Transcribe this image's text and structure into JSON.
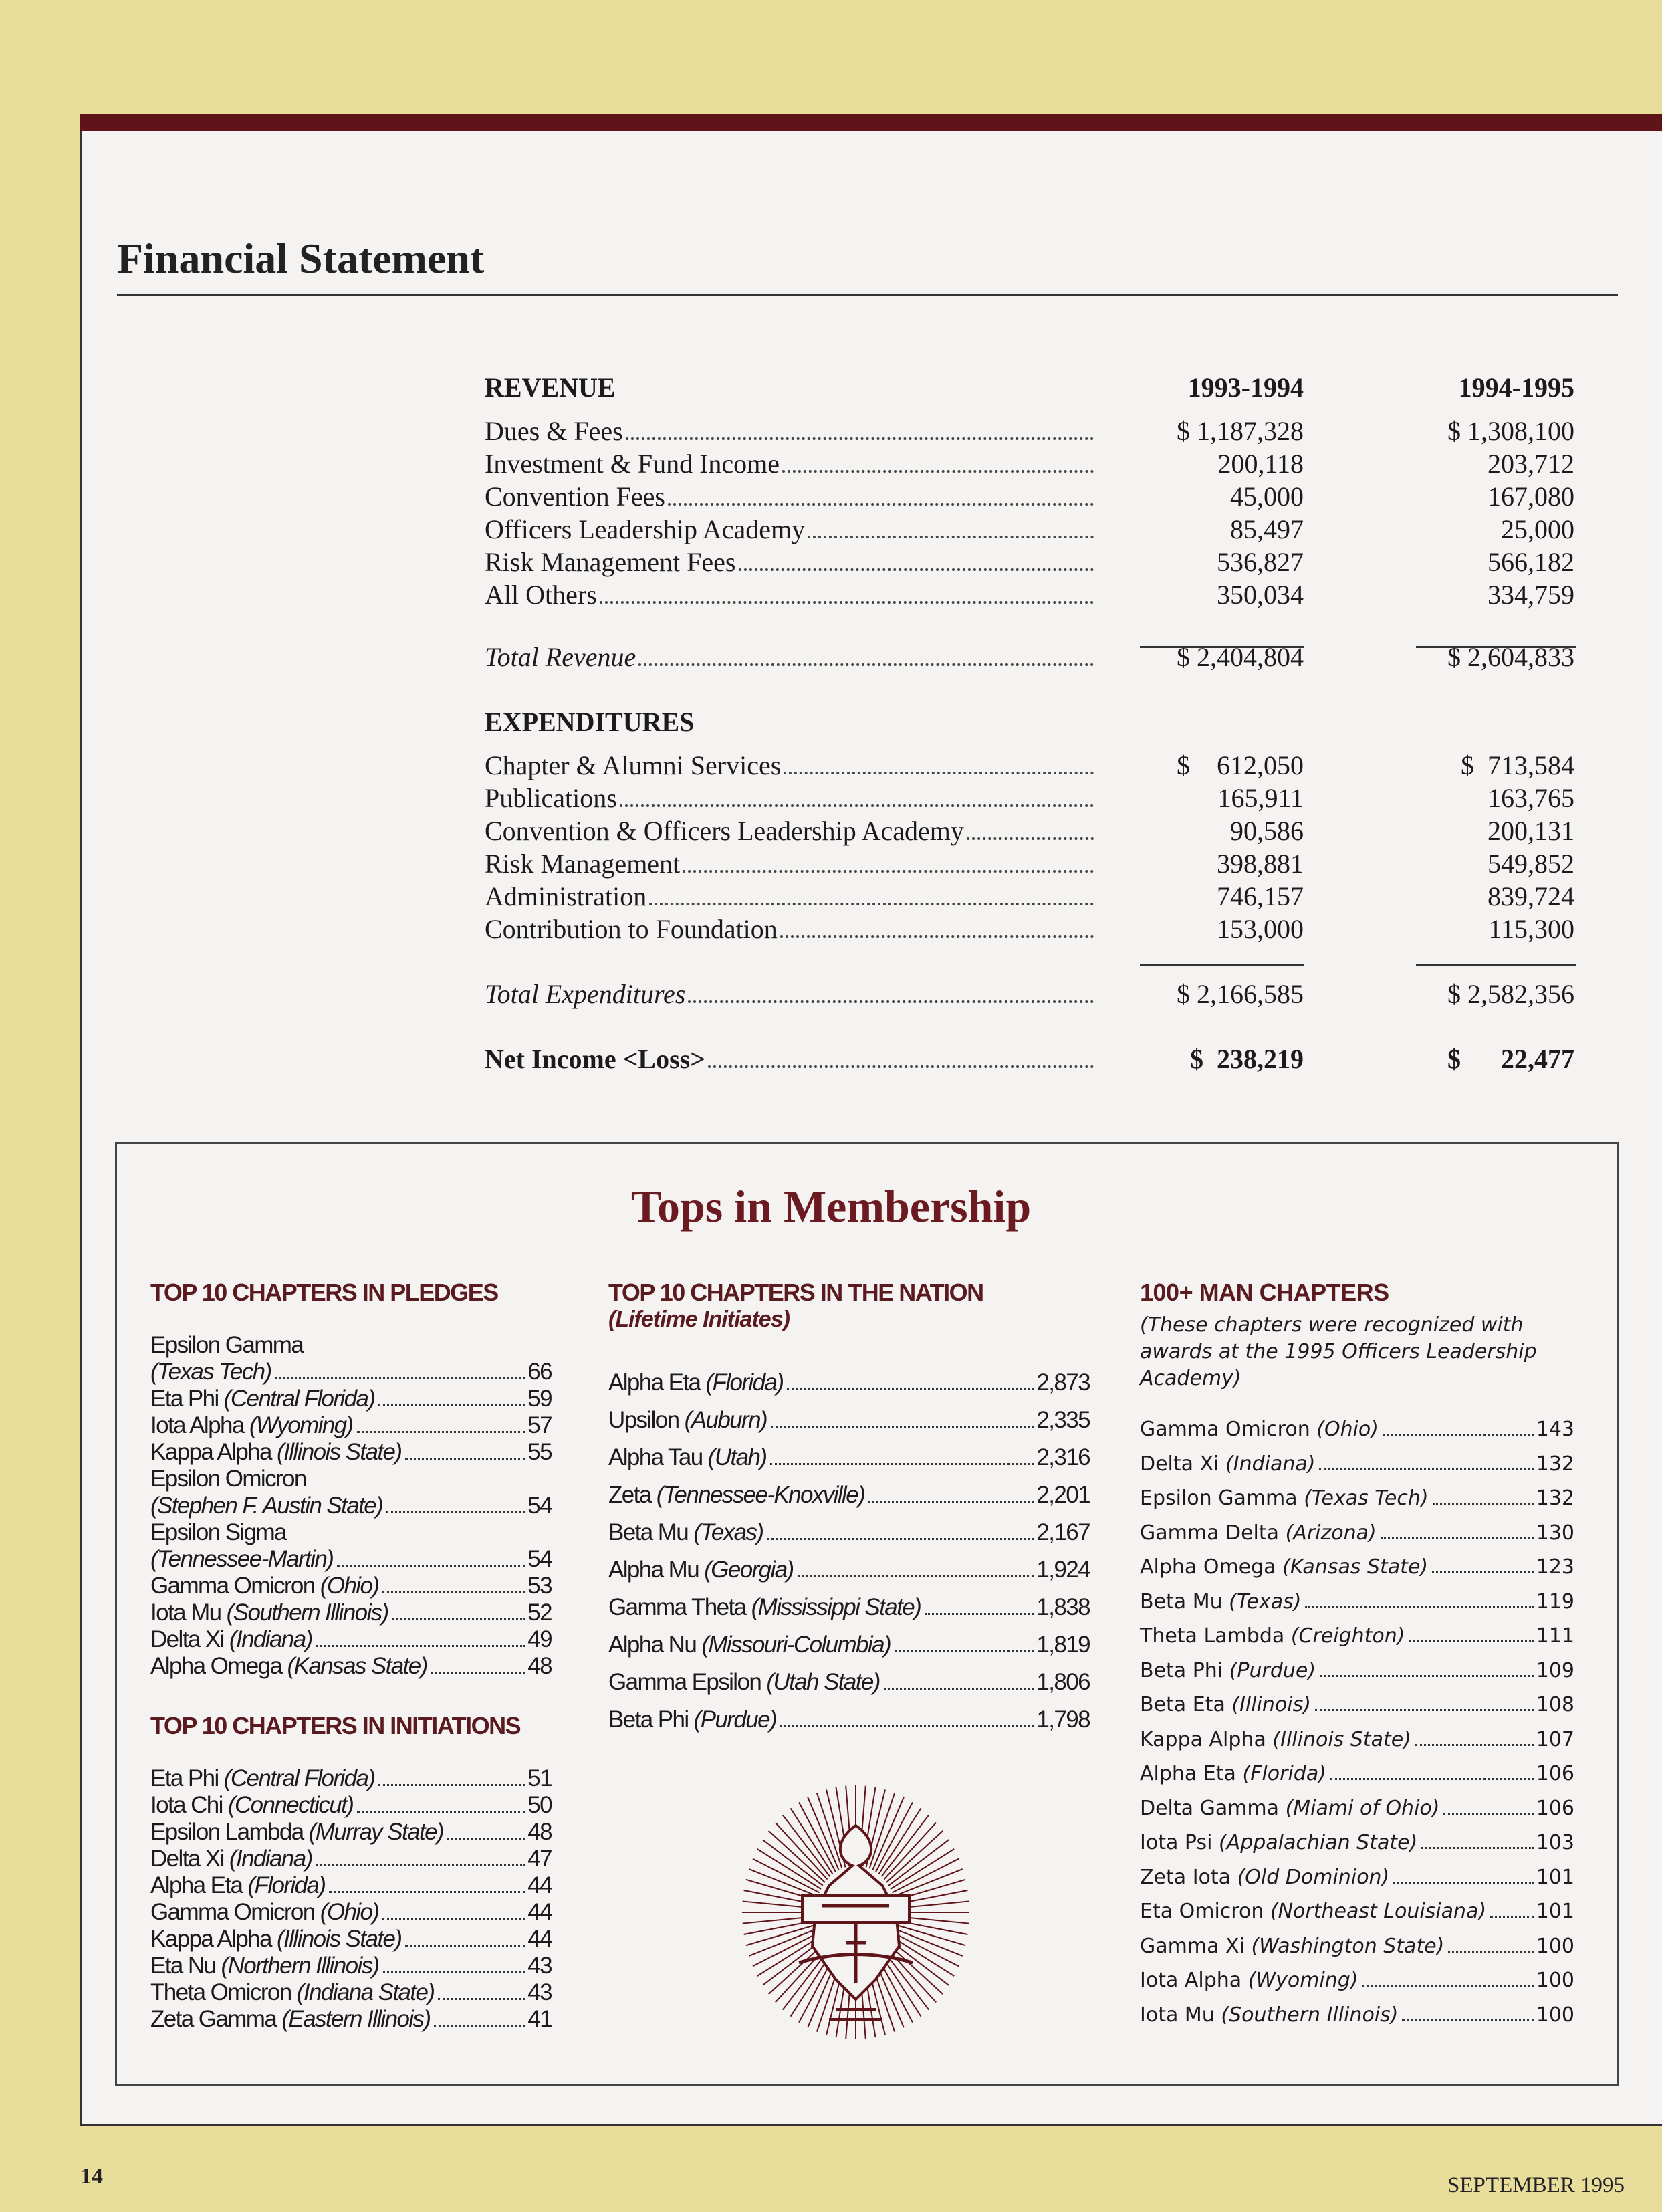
{
  "financial": {
    "title": "Financial Statement",
    "revenue_header": "REVENUE",
    "years": [
      "1993-1994",
      "1994-1995"
    ],
    "revenue": [
      {
        "label": "Dues & Fees",
        "y1": "$ 1,187,328",
        "y2": "$ 1,308,100"
      },
      {
        "label": "Investment & Fund Income",
        "y1": "200,118",
        "y2": "203,712"
      },
      {
        "label": "Convention Fees",
        "y1": "45,000",
        "y2": "167,080"
      },
      {
        "label": "Officers Leadership Academy",
        "y1": "85,497",
        "y2": "25,000"
      },
      {
        "label": "Risk Management Fees",
        "y1": "536,827",
        "y2": "566,182"
      },
      {
        "label": "All Others",
        "y1": "350,034",
        "y2": "334,759"
      }
    ],
    "total_revenue": {
      "label": "Total Revenue",
      "y1": "$ 2,404,804",
      "y2": "$ 2,604,833"
    },
    "expenditures_header": "EXPENDITURES",
    "expenditures": [
      {
        "label": "Chapter & Alumni Services",
        "y1": "$    612,050",
        "y2": "$  713,584"
      },
      {
        "label": "Publications",
        "y1": "165,911",
        "y2": "163,765"
      },
      {
        "label": "Convention & Officers Leadership Academy",
        "y1": "90,586",
        "y2": "200,131"
      },
      {
        "label": "Risk Management",
        "y1": "398,881",
        "y2": "549,852"
      },
      {
        "label": "Administration",
        "y1": "746,157",
        "y2": "839,724"
      },
      {
        "label": "Contribution to Foundation",
        "y1": "153,000",
        "y2": "115,300"
      }
    ],
    "total_expenditures": {
      "label": "Total Expenditures",
      "y1": "$ 2,166,585",
      "y2": "$ 2,582,356"
    },
    "net_income": {
      "label": "Net Income <Loss>",
      "y1": "$  238,219",
      "y2": "$      22,477"
    }
  },
  "membership": {
    "title": "Tops in Membership",
    "pledges": {
      "heading": "TOP 10 CHAPTERS IN PLEDGES",
      "items": [
        {
          "name": "Epsilon Gamma",
          "school": "(Texas Tech)",
          "value": "66",
          "wrap": true
        },
        {
          "name": "Eta Phi",
          "school": "(Central Florida)",
          "value": "59"
        },
        {
          "name": "Iota Alpha",
          "school": "(Wyoming)",
          "value": "57"
        },
        {
          "name": "Kappa Alpha",
          "school": "(Illinois State)",
          "value": "55"
        },
        {
          "name": "Epsilon Omicron",
          "school": "(Stephen F. Austin State)",
          "value": "54",
          "wrap": true
        },
        {
          "name": "Epsilon Sigma",
          "school": "(Tennessee-Martin)",
          "value": "54",
          "wrap": true
        },
        {
          "name": "Gamma Omicron",
          "school": "(Ohio)",
          "value": "53"
        },
        {
          "name": "Iota Mu",
          "school": "(Southern Illinois)",
          "value": "52"
        },
        {
          "name": "Delta Xi",
          "school": "(Indiana)",
          "value": "49"
        },
        {
          "name": "Alpha Omega",
          "school": "(Kansas State)",
          "value": "48"
        }
      ]
    },
    "initiations": {
      "heading": "TOP 10 CHAPTERS IN INITIATIONS",
      "items": [
        {
          "name": "Eta Phi",
          "school": "(Central Florida)",
          "value": "51"
        },
        {
          "name": "Iota Chi",
          "school": "(Connecticut)",
          "value": "50"
        },
        {
          "name": "Epsilon Lambda",
          "school": "(Murray State)",
          "value": "48"
        },
        {
          "name": "Delta Xi",
          "school": "(Indiana)",
          "value": "47"
        },
        {
          "name": "Alpha Eta",
          "school": "(Florida)",
          "value": "44"
        },
        {
          "name": "Gamma Omicron",
          "school": "(Ohio)",
          "value": "44"
        },
        {
          "name": "Kappa Alpha",
          "school": "(Illinois State)",
          "value": "44"
        },
        {
          "name": "Eta Nu",
          "school": "(Northern Illinois)",
          "value": "43"
        },
        {
          "name": "Theta Omicron",
          "school": "(Indiana State)",
          "value": "43"
        },
        {
          "name": "Zeta Gamma",
          "school": "(Eastern Illinois)",
          "value": "41"
        }
      ]
    },
    "nation": {
      "heading": "TOP 10 CHAPTERS IN THE NATION",
      "subheading": "(Lifetime Initiates)",
      "items": [
        {
          "name": "Alpha Eta",
          "school": "(Florida)",
          "value": "2,873"
        },
        {
          "name": "Upsilon",
          "school": "(Auburn)",
          "value": "2,335"
        },
        {
          "name": "Alpha Tau",
          "school": "(Utah)",
          "value": "2,316"
        },
        {
          "name": "Zeta",
          "school": "(Tennessee-Knoxville)",
          "value": "2,201"
        },
        {
          "name": "Beta Mu",
          "school": "(Texas)",
          "value": "2,167"
        },
        {
          "name": "Alpha Mu",
          "school": "(Georgia)",
          "value": "1,924"
        },
        {
          "name": "Gamma Theta",
          "school": "(Mississippi State)",
          "value": "1,838"
        },
        {
          "name": "Alpha Nu",
          "school": "(Missouri-Columbia)",
          "value": "1,819"
        },
        {
          "name": "Gamma Epsilon",
          "school": "(Utah State)",
          "value": "1,806"
        },
        {
          "name": "Beta Phi",
          "school": "(Purdue)",
          "value": "1,798"
        }
      ]
    },
    "hundred_man": {
      "heading": "100+ MAN CHAPTERS",
      "note": "(These chapters were recognized with awards at the 1995 Officers Leadership Academy)",
      "items": [
        {
          "name": "Gamma Omicron",
          "school": "(Ohio)",
          "value": "143"
        },
        {
          "name": "Delta Xi",
          "school": "(Indiana)",
          "value": "132"
        },
        {
          "name": "Epsilon Gamma",
          "school": "(Texas Tech)",
          "value": "132"
        },
        {
          "name": "Gamma Delta",
          "school": "(Arizona)",
          "value": "130"
        },
        {
          "name": "Alpha Omega",
          "school": "(Kansas State)",
          "value": "123"
        },
        {
          "name": "Beta Mu",
          "school": "(Texas)",
          "value": "119"
        },
        {
          "name": "Theta Lambda",
          "school": "(Creighton)",
          "value": "111"
        },
        {
          "name": "Beta Phi",
          "school": "(Purdue)",
          "value": "109"
        },
        {
          "name": "Beta Eta",
          "school": "(Illinois)",
          "value": "108"
        },
        {
          "name": "Kappa Alpha",
          "school": "(Illinois State)",
          "value": "107"
        },
        {
          "name": "Alpha Eta",
          "school": "(Florida)",
          "value": "106"
        },
        {
          "name": "Delta Gamma",
          "school": "(Miami of Ohio)",
          "value": "106"
        },
        {
          "name": "Iota Psi",
          "school": "(Appalachian State)",
          "value": "103"
        },
        {
          "name": "Zeta Iota",
          "school": "(Old Dominion)",
          "value": "101"
        },
        {
          "name": "Eta Omicron",
          "school": "(Northeast Louisiana)",
          "value": "101"
        },
        {
          "name": "Gamma Xi",
          "school": "(Washington State)",
          "value": "100"
        },
        {
          "name": "Iota Alpha",
          "school": "(Wyoming)",
          "value": "100"
        },
        {
          "name": "Iota Mu",
          "school": "(Southern Illinois)",
          "value": "100"
        }
      ]
    },
    "crest_icon": "fraternity-crest-sunburst"
  },
  "footer": {
    "page_number": "14",
    "issue": "SEPTEMBER 1995"
  },
  "colors": {
    "accent_maroon": "#5e1418",
    "heading_maroon": "#6a1a20",
    "page_background": "#e9dd9c"
  }
}
